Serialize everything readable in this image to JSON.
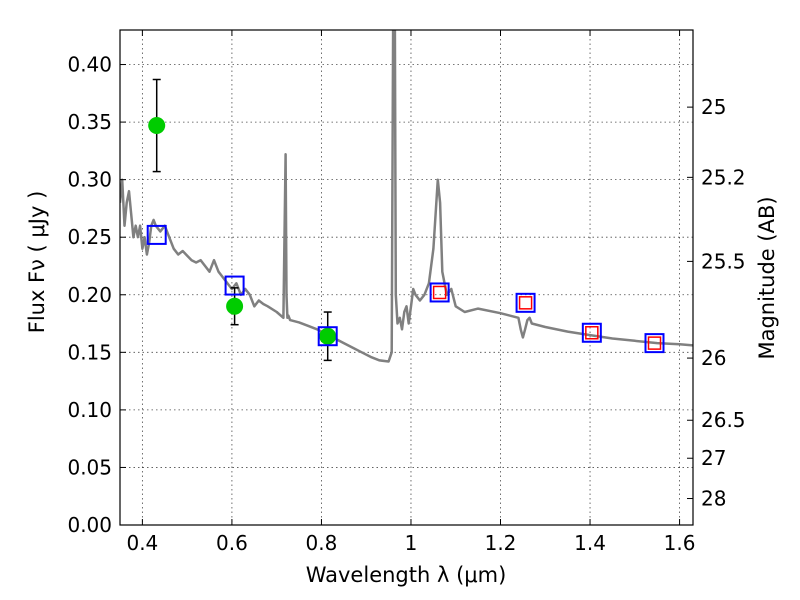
{
  "chart_data": {
    "type": "scatter",
    "xlabel": "Wavelength  λ (μm)",
    "ylabel": "Flux  Fν  ( μJy )",
    "y2label": "Magnitude (AB)",
    "xlim": [
      0.35,
      1.63
    ],
    "ylim": [
      0.0,
      0.43
    ],
    "grid": true,
    "x_ticks": [
      0.4,
      0.6,
      0.8,
      1.0,
      1.2,
      1.4,
      1.6
    ],
    "x_tick_labels": [
      "0.4",
      "0.6",
      "0.8",
      "1",
      "1.2",
      "1.4",
      "1.6"
    ],
    "y_ticks": [
      0.0,
      0.05,
      0.1,
      0.15,
      0.2,
      0.25,
      0.3,
      0.35,
      0.4
    ],
    "y_tick_labels": [
      "0.00",
      "0.05",
      "0.10",
      "0.15",
      "0.20",
      "0.25",
      "0.30",
      "0.35",
      "0.40"
    ],
    "y2_ticks": [
      {
        "label": "25",
        "flux": 0.363
      },
      {
        "label": "25.2",
        "flux": 0.302
      },
      {
        "label": "25.5",
        "flux": 0.229
      },
      {
        "label": "26",
        "flux": 0.145
      },
      {
        "label": "26.5",
        "flux": 0.091
      },
      {
        "label": "27",
        "flux": 0.058
      },
      {
        "label": "28",
        "flux": 0.023
      }
    ],
    "model_spectrum": {
      "color": "#808080",
      "x": [
        0.35,
        0.355,
        0.36,
        0.365,
        0.37,
        0.375,
        0.38,
        0.385,
        0.39,
        0.395,
        0.4,
        0.405,
        0.41,
        0.415,
        0.42,
        0.425,
        0.43,
        0.44,
        0.45,
        0.46,
        0.47,
        0.48,
        0.49,
        0.5,
        0.51,
        0.52,
        0.53,
        0.54,
        0.55,
        0.56,
        0.57,
        0.58,
        0.59,
        0.6,
        0.61,
        0.62,
        0.63,
        0.64,
        0.65,
        0.66,
        0.67,
        0.68,
        0.7,
        0.715,
        0.72,
        0.722,
        0.724,
        0.726,
        0.73,
        0.75,
        0.77,
        0.79,
        0.81,
        0.83,
        0.85,
        0.87,
        0.89,
        0.91,
        0.93,
        0.95,
        0.957,
        0.96,
        0.962,
        0.964,
        0.966,
        0.97,
        0.975,
        0.98,
        0.985,
        0.99,
        0.995,
        1.0,
        1.005,
        1.01,
        1.02,
        1.03,
        1.04,
        1.05,
        1.06,
        1.065,
        1.07,
        1.08,
        1.09,
        1.1,
        1.12,
        1.15,
        1.2,
        1.24,
        1.245,
        1.25,
        1.255,
        1.26,
        1.265,
        1.27,
        1.3,
        1.35,
        1.4,
        1.45,
        1.5,
        1.55,
        1.6,
        1.63
      ],
      "y": [
        0.28,
        0.3,
        0.26,
        0.28,
        0.29,
        0.27,
        0.25,
        0.26,
        0.25,
        0.26,
        0.24,
        0.25,
        0.235,
        0.245,
        0.26,
        0.265,
        0.26,
        0.255,
        0.26,
        0.25,
        0.24,
        0.235,
        0.238,
        0.234,
        0.23,
        0.228,
        0.23,
        0.225,
        0.22,
        0.23,
        0.22,
        0.215,
        0.21,
        0.205,
        0.21,
        0.2,
        0.205,
        0.2,
        0.19,
        0.195,
        0.192,
        0.19,
        0.185,
        0.18,
        0.322,
        0.2,
        0.18,
        0.182,
        0.178,
        0.176,
        0.173,
        0.17,
        0.166,
        0.162,
        0.158,
        0.154,
        0.15,
        0.146,
        0.143,
        0.142,
        0.15,
        0.43,
        0.43,
        0.43,
        0.2,
        0.175,
        0.18,
        0.17,
        0.185,
        0.19,
        0.175,
        0.19,
        0.205,
        0.2,
        0.195,
        0.2,
        0.21,
        0.24,
        0.3,
        0.28,
        0.22,
        0.2,
        0.205,
        0.19,
        0.185,
        0.188,
        0.184,
        0.18,
        0.17,
        0.163,
        0.17,
        0.178,
        0.18,
        0.175,
        0.172,
        0.168,
        0.165,
        0.162,
        0.16,
        0.158,
        0.157,
        0.156
      ]
    },
    "observed_points": {
      "color": "#00cc00",
      "x": [
        0.432,
        0.606,
        0.814
      ],
      "y": [
        0.347,
        0.19,
        0.164
      ],
      "yerr": [
        0.04,
        0.016,
        0.021
      ]
    },
    "model_photometry": {
      "color": "#0000ff",
      "x": [
        0.432,
        0.606,
        0.814,
        1.064,
        1.256,
        1.404,
        1.544
      ],
      "y": [
        0.252,
        0.208,
        0.164,
        0.202,
        0.193,
        0.167,
        0.158
      ]
    },
    "nir_photometry": {
      "color": "#ff0000",
      "x": [
        1.064,
        1.256,
        1.404,
        1.544
      ],
      "y": [
        0.202,
        0.193,
        0.167,
        0.158
      ]
    }
  }
}
